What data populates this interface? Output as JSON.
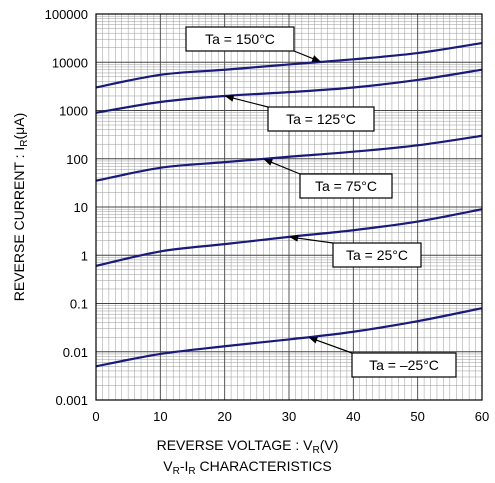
{
  "chart_data": {
    "type": "line",
    "title": "",
    "xlabel": "REVERSE VOLTAGE : V_R(V)",
    "xlabel_parts": {
      "main": "REVERSE VOLTAGE : V",
      "sub": "R",
      "tail": "(V)"
    },
    "ylabel": "REVERSE CURRENT : I_R(μA)",
    "ylabel_parts": {
      "main": "REVERSE CURRENT : I",
      "sub": "R",
      "tail": "(μA)"
    },
    "subtitle": "V_R-I_R CHARACTERISTICS",
    "subtitle_parts": {
      "a": "V",
      "a_sub": "R",
      "mid": "-I",
      "b_sub": "R",
      "tail": " CHARACTERISTICS"
    },
    "xlim": [
      0,
      60
    ],
    "ylim": [
      0.001,
      100000
    ],
    "yscale": "log",
    "grid": true,
    "xticks": [
      "0",
      "10",
      "20",
      "30",
      "40",
      "50",
      "60"
    ],
    "yticks": [
      "0.001",
      "0.01",
      "0.1",
      "1",
      "10",
      "100",
      "1000",
      "10000",
      "100000"
    ],
    "series": [
      {
        "name": "Ta = 150°C",
        "x": [
          0,
          10,
          20,
          30,
          40,
          50,
          60
        ],
        "y": [
          3000,
          5500,
          7000,
          9000,
          11500,
          15500,
          25000
        ]
      },
      {
        "name": "Ta = 125°C",
        "x": [
          0,
          10,
          20,
          30,
          40,
          50,
          60
        ],
        "y": [
          900,
          1500,
          2000,
          2400,
          3000,
          4300,
          7000
        ]
      },
      {
        "name": "Ta = 75°C",
        "x": [
          0,
          10,
          20,
          30,
          40,
          50,
          60
        ],
        "y": [
          35,
          65,
          85,
          110,
          140,
          190,
          300
        ]
      },
      {
        "name": "Ta = 25°C",
        "x": [
          0,
          10,
          20,
          30,
          40,
          50,
          60
        ],
        "y": [
          0.6,
          1.2,
          1.7,
          2.4,
          3.3,
          5,
          9
        ]
      },
      {
        "name": "Ta = −25°C",
        "x": [
          0,
          10,
          20,
          30,
          40,
          50,
          60
        ],
        "y": [
          0.005,
          0.009,
          0.013,
          0.018,
          0.026,
          0.043,
          0.08
        ]
      }
    ],
    "annotations": [
      {
        "label": "Ta = 150°C",
        "series": 0,
        "x": 35
      },
      {
        "label": "Ta = 125°C",
        "series": 1,
        "x": 20
      },
      {
        "label": "Ta = 75°C",
        "series": 2,
        "x": 26
      },
      {
        "label": "Ta = 25°C",
        "series": 3,
        "x": 30
      },
      {
        "label": "Ta = –25°C",
        "series": 4,
        "x": 33
      }
    ],
    "line_color": "#1a1a7a"
  }
}
